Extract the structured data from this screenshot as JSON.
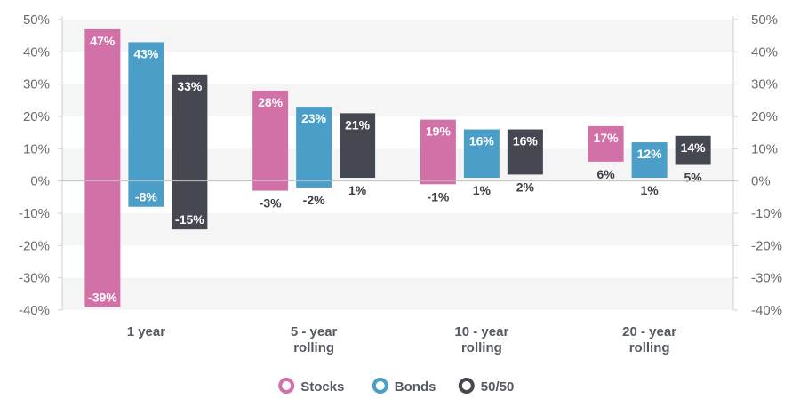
{
  "chart_data": {
    "type": "bar",
    "subtype": "floating-range",
    "title": "",
    "xlabel": "",
    "ylabel": "",
    "ylim": [
      -40,
      50
    ],
    "yticks": [
      "50%",
      "40%",
      "30%",
      "20%",
      "10%",
      "0%",
      "-10%",
      "-20%",
      "-30%",
      "-40%"
    ],
    "grid": "alternating horizontal bands",
    "legend_position": "bottom-center",
    "categories": [
      {
        "lines": [
          "1 year"
        ]
      },
      {
        "lines": [
          "5 - year",
          "rolling"
        ]
      },
      {
        "lines": [
          "10 - year",
          "rolling"
        ]
      },
      {
        "lines": [
          "20 - year",
          "rolling"
        ]
      }
    ],
    "series": [
      {
        "name": "Stocks",
        "color": "#d271a8",
        "high": [
          47,
          28,
          19,
          17
        ],
        "low": [
          -39,
          -3,
          -1,
          6
        ],
        "high_labels": [
          "47%",
          "28%",
          "19%",
          "17%"
        ],
        "low_labels": [
          "-39%",
          "-3%",
          "-1%",
          "6%"
        ]
      },
      {
        "name": "Bonds",
        "color": "#4a9ec7",
        "high": [
          43,
          23,
          16,
          12
        ],
        "low": [
          -8,
          -2,
          1,
          1
        ],
        "high_labels": [
          "43%",
          "23%",
          "16%",
          "12%"
        ],
        "low_labels": [
          "-8%",
          "-2%",
          "1%",
          "1%"
        ]
      },
      {
        "name": "50/50",
        "color": "#454851",
        "high": [
          33,
          21,
          16,
          14
        ],
        "low": [
          -15,
          1,
          2,
          5
        ],
        "high_labels": [
          "33%",
          "21%",
          "16%",
          "14%"
        ],
        "low_labels": [
          "-15%",
          "1%",
          "2%",
          "5%"
        ]
      }
    ]
  }
}
